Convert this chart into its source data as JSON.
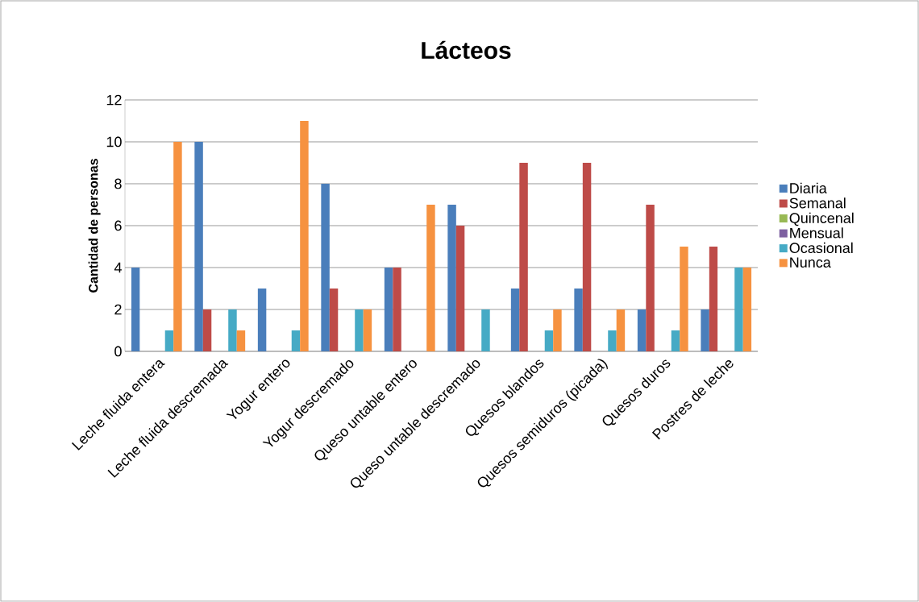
{
  "chart_data": {
    "type": "bar",
    "title": "Lácteos",
    "ylabel": "Cantidad de personas",
    "categories": [
      "Leche fluida entera",
      "Leche fluida descremada",
      "Yogur entero",
      "Yogur descremado",
      "Queso untable entero",
      "Queso untable descremado",
      "Quesos blandos",
      "Quesos semiduros (picada)",
      "Quesos duros",
      "Postres de leche"
    ],
    "series": [
      {
        "name": "Diaria",
        "color": "#4a7ebb",
        "values": [
          4,
          10,
          3,
          8,
          4,
          7,
          3,
          3,
          2,
          2
        ]
      },
      {
        "name": "Semanal",
        "color": "#be4b48",
        "values": [
          0,
          2,
          0,
          3,
          4,
          6,
          9,
          9,
          7,
          5
        ]
      },
      {
        "name": "Quincenal",
        "color": "#98b954",
        "values": [
          0,
          0,
          0,
          0,
          0,
          0,
          0,
          0,
          0,
          0
        ]
      },
      {
        "name": "Mensual",
        "color": "#7d60a0",
        "values": [
          0,
          0,
          0,
          0,
          0,
          0,
          0,
          0,
          0,
          0
        ]
      },
      {
        "name": "Ocasional",
        "color": "#46aac5",
        "values": [
          1,
          2,
          1,
          2,
          0,
          2,
          1,
          1,
          1,
          4
        ]
      },
      {
        "name": "Nunca",
        "color": "#f69240",
        "values": [
          10,
          1,
          11,
          2,
          7,
          0,
          2,
          2,
          5,
          4
        ]
      }
    ],
    "ylim": [
      0,
      12
    ],
    "yticks": [
      0,
      2,
      4,
      6,
      8,
      10,
      12
    ],
    "grid": "y",
    "legend": "right"
  }
}
